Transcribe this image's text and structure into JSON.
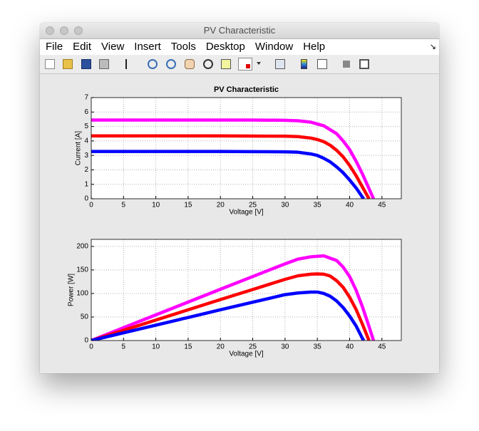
{
  "window": {
    "title": "PV Characteristic",
    "menu": [
      "File",
      "Edit",
      "View",
      "Insert",
      "Tools",
      "Desktop",
      "Window",
      "Help"
    ]
  },
  "chart_data": [
    {
      "type": "line",
      "title": "PV Characteristic",
      "xlabel": "Voltage [V]",
      "ylabel": "Current [A]",
      "xlim": [
        0,
        48
      ],
      "ylim": [
        0,
        7
      ],
      "xticks": [
        0,
        5,
        10,
        15,
        20,
        25,
        30,
        35,
        40,
        45
      ],
      "yticks": [
        0,
        1,
        2,
        3,
        4,
        5,
        6,
        7
      ],
      "grid": true,
      "series": [
        {
          "color": "#ff00ff",
          "x": [
            0,
            5,
            10,
            15,
            20,
            25,
            30,
            32,
            34,
            36,
            38,
            39,
            40,
            41,
            42,
            43,
            43.7
          ],
          "values": [
            5.45,
            5.45,
            5.45,
            5.45,
            5.45,
            5.45,
            5.43,
            5.4,
            5.3,
            5.05,
            4.5,
            4.0,
            3.4,
            2.6,
            1.7,
            0.7,
            0
          ]
        },
        {
          "color": "#ff0000",
          "x": [
            0,
            5,
            10,
            15,
            20,
            25,
            30,
            32,
            34,
            35,
            36,
            37,
            38,
            39,
            40,
            41,
            42,
            43
          ],
          "values": [
            4.35,
            4.35,
            4.35,
            4.35,
            4.35,
            4.34,
            4.33,
            4.3,
            4.2,
            4.1,
            3.95,
            3.7,
            3.35,
            2.9,
            2.3,
            1.6,
            0.8,
            0
          ]
        },
        {
          "color": "#0000ff",
          "x": [
            0,
            5,
            10,
            15,
            20,
            25,
            30,
            32,
            34,
            35,
            36,
            37,
            38,
            39,
            40,
            41,
            42,
            42.2
          ],
          "values": [
            3.27,
            3.27,
            3.27,
            3.27,
            3.27,
            3.26,
            3.25,
            3.22,
            3.1,
            3.0,
            2.8,
            2.55,
            2.2,
            1.8,
            1.3,
            0.75,
            0.1,
            0
          ]
        }
      ]
    },
    {
      "type": "line",
      "xlabel": "Voltage [V]",
      "ylabel": "Power [W]",
      "xlim": [
        0,
        48
      ],
      "ylim": [
        0,
        215
      ],
      "xticks": [
        0,
        5,
        10,
        15,
        20,
        25,
        30,
        35,
        40,
        45
      ],
      "yticks": [
        0,
        50,
        100,
        150,
        200
      ],
      "grid": true,
      "series": [
        {
          "color": "#ff00ff",
          "x": [
            0,
            5,
            10,
            15,
            20,
            25,
            30,
            32,
            34,
            36,
            38,
            39,
            40,
            41,
            42,
            43,
            43.7
          ],
          "values": [
            0,
            27.3,
            54.5,
            81.8,
            109,
            136,
            163,
            173,
            178,
            180,
            170,
            156,
            136,
            107,
            71,
            30,
            0
          ]
        },
        {
          "color": "#ff0000",
          "x": [
            0,
            5,
            10,
            15,
            20,
            25,
            30,
            32,
            34,
            35,
            36,
            37,
            38,
            39,
            40,
            41,
            42,
            43
          ],
          "values": [
            0,
            21.8,
            43.5,
            65.3,
            87,
            108.5,
            130,
            137.6,
            141,
            141.5,
            141,
            137,
            127,
            113,
            92,
            66,
            34,
            0
          ]
        },
        {
          "color": "#0000ff",
          "x": [
            0,
            5,
            10,
            15,
            20,
            25,
            30,
            32,
            34,
            35,
            36,
            37,
            38,
            39,
            40,
            41,
            42,
            42.2
          ],
          "values": [
            0,
            16.4,
            32.7,
            49,
            65.4,
            81.5,
            97.5,
            101,
            103,
            103,
            100,
            94,
            84,
            70,
            52,
            31,
            4,
            0
          ]
        }
      ]
    }
  ]
}
